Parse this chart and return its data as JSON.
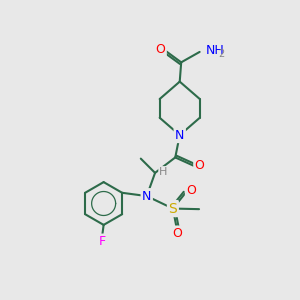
{
  "background_color": "#e8e8e8",
  "bond_color": "#2d6b4a",
  "atom_colors": {
    "O": "#ff0000",
    "N": "#0000ff",
    "F": "#ff00ff",
    "S": "#ccaa00",
    "H": "#888888",
    "C": "#2d6b4a"
  },
  "figsize": [
    3.0,
    3.0
  ],
  "dpi": 100
}
